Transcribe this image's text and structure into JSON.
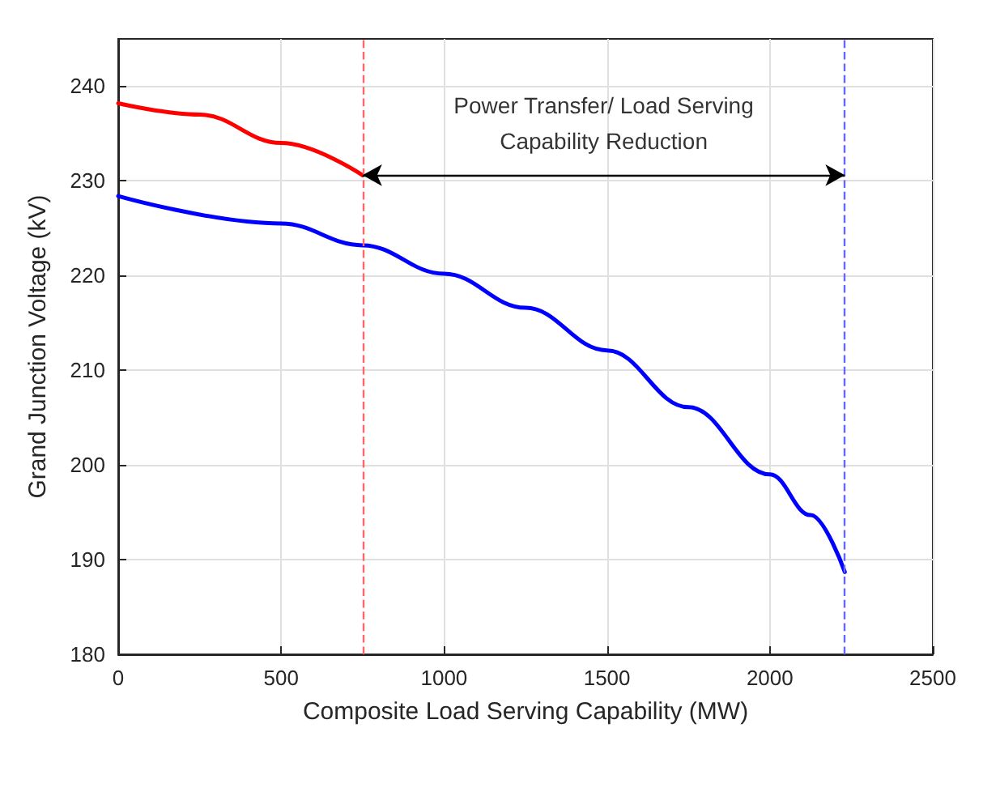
{
  "chart_data": {
    "type": "line",
    "xlabel": "Composite Load Serving Capability (MW)",
    "ylabel": "Grand Junction Voltage (kV)",
    "xlim": [
      0,
      2500
    ],
    "xticks": [
      0,
      500,
      1000,
      1500,
      2000,
      2500
    ],
    "ylim": [
      180,
      245
    ],
    "yticks": [
      180,
      190,
      200,
      210,
      220,
      230,
      240
    ],
    "grid": true,
    "marker": "none",
    "line_style": "solid",
    "series": [
      {
        "color": "#ff0000",
        "x": [
          0,
          250,
          500,
          750
        ],
        "values": [
          238.2,
          237.0,
          234.0,
          230.6
        ]
      },
      {
        "color": "#0000ff",
        "x": [
          0,
          500,
          750,
          1000,
          1250,
          1500,
          1750,
          2000,
          2125,
          2230
        ],
        "values": [
          228.4,
          225.5,
          223.2,
          220.2,
          216.6,
          212.1,
          206.1,
          199.0,
          194.7,
          188.7
        ]
      }
    ],
    "ref_lines": [
      {
        "axis": "x",
        "value": 750,
        "color": "#ff6666",
        "line_style": "dashed"
      },
      {
        "axis": "x",
        "value": 2230,
        "color": "#6666ff",
        "line_style": "dashed"
      }
    ],
    "annotations": [
      "Power Transfer/ Load Serving\nCapability Reduction"
    ]
  }
}
